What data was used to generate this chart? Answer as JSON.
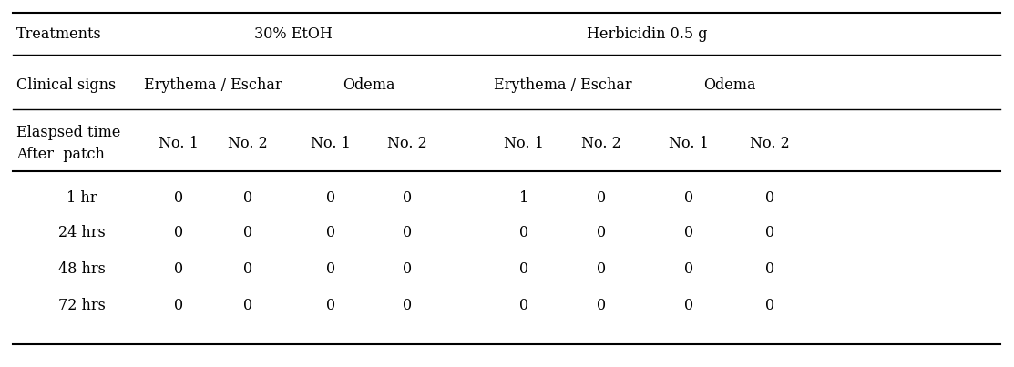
{
  "background_color": "#ffffff",
  "font_family": "serif",
  "figsize": [
    11.13,
    4.03
  ],
  "dpi": 100,
  "row1_label": "Treatments",
  "row1_col1": "30% EtOH",
  "row1_col2": "Herbicidin 0.5 g",
  "row2_label": "Clinical signs",
  "row2_col1a": "Erythema / Eschar",
  "row2_col1b": "Odema",
  "row2_col2a": "Erythema / Eschar",
  "row2_col2b": "Odema",
  "row3_label1": "Elaspsed time",
  "row3_label2": "After  patch",
  "row3_sub": [
    "No. 1",
    "No. 2",
    "No. 1",
    "No. 2",
    "No. 1",
    "No. 2",
    "No. 1",
    "No. 2"
  ],
  "data_rows": [
    [
      "1 hr",
      0,
      0,
      0,
      0,
      1,
      0,
      0,
      0
    ],
    [
      "24 hrs",
      0,
      0,
      0,
      0,
      0,
      0,
      0,
      0
    ],
    [
      "48 hrs",
      0,
      0,
      0,
      0,
      0,
      0,
      0,
      0
    ],
    [
      "72 hrs",
      0,
      0,
      0,
      0,
      0,
      0,
      0,
      0
    ]
  ],
  "text_color": "#000000",
  "line_color": "#000000",
  "fontsize": 11.5
}
